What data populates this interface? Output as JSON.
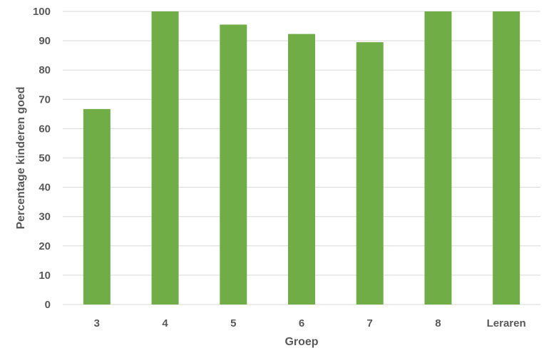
{
  "chart_data": {
    "type": "bar",
    "title": "",
    "xlabel": "Groep",
    "ylabel": "Percentage kinderen goed",
    "categories": [
      "3",
      "4",
      "5",
      "6",
      "7",
      "8",
      "Leraren"
    ],
    "values": [
      66.7,
      100,
      95.5,
      92.3,
      89.5,
      100,
      100
    ],
    "ylim": [
      0,
      100
    ],
    "yticks": [
      0,
      10,
      20,
      30,
      40,
      50,
      60,
      70,
      80,
      90,
      100
    ],
    "grid": true,
    "legend": "none",
    "colors": {
      "bar": "#70ad47",
      "gridline": "#d9d9d9",
      "text": "#595959"
    }
  }
}
